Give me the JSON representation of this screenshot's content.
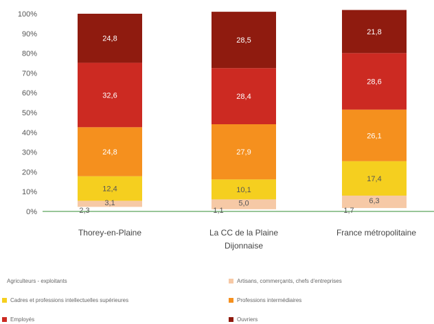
{
  "chart_data": {
    "type": "bar",
    "stacked": true,
    "categories": [
      "Thorey-en-Plaine",
      "La CC de la Plaine Dijonnaise",
      "France métropolitaine"
    ],
    "category_lines": [
      [
        "Thorey-en-Plaine"
      ],
      [
        "La CC de la Plaine",
        "Dijonnaise"
      ],
      [
        "France métropolitaine"
      ]
    ],
    "series": [
      {
        "name": "Agriculteurs - exploitants",
        "color": "#5aa35a",
        "values": [
          2.3,
          1.1,
          1.7
        ],
        "labels": [
          "2,3",
          "1,1",
          "1,7"
        ]
      },
      {
        "name": "Artisans, commerçants, chefs d'entreprises",
        "color": "#f6c9a6",
        "values": [
          3.1,
          5.0,
          6.3
        ],
        "labels": [
          "3,1",
          "5,0",
          "6,3"
        ]
      },
      {
        "name": "Cadres et professions intellectuelles supérieures",
        "color": "#f5cf1f",
        "values": [
          12.4,
          10.1,
          17.4
        ],
        "labels": [
          "12,4",
          "10,1",
          "17,4"
        ]
      },
      {
        "name": "Professions intermédiaires",
        "color": "#f5901e",
        "values": [
          24.8,
          27.9,
          26.1
        ],
        "labels": [
          "24,8",
          "27,9",
          "26,1"
        ]
      },
      {
        "name": "Employés",
        "color": "#cc2a22",
        "values": [
          32.6,
          28.4,
          28.6
        ],
        "labels": [
          "32,6",
          "28,4",
          "28,6"
        ]
      },
      {
        "name": "Ouvriers",
        "color": "#8f1b0f",
        "values": [
          24.8,
          28.5,
          21.8
        ],
        "labels": [
          "24,8",
          "28,5",
          "21,8"
        ]
      }
    ],
    "y_ticks": [
      "0%",
      "10%",
      "20%",
      "30%",
      "40%",
      "50%",
      "60%",
      "70%",
      "80%",
      "90%",
      "100%"
    ],
    "ylim": [
      0,
      100
    ],
    "grid": false,
    "legend_position": "bottom"
  }
}
